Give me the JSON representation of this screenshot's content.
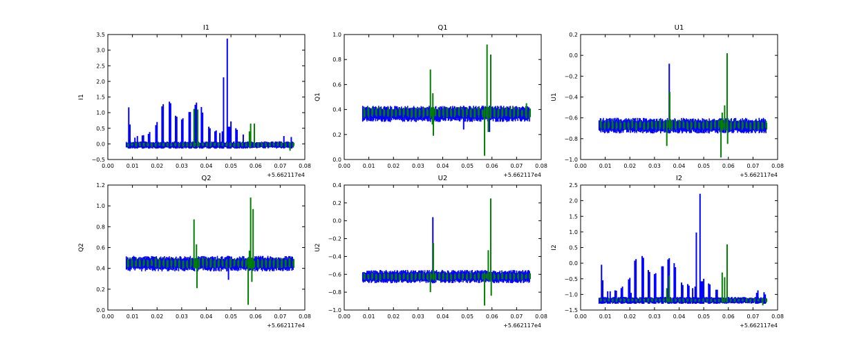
{
  "chart_data": {
    "type": "line",
    "figure_layout": "2x3 grid",
    "x_offset_label": "+5.662117e4",
    "x_range": [
      0.0075,
      0.0755
    ],
    "xlim": [
      0.0,
      0.08
    ],
    "xticks": [
      "0.00",
      "0.01",
      "0.02",
      "0.03",
      "0.04",
      "0.05",
      "0.06",
      "0.07",
      "0.08"
    ],
    "series_colors": {
      "blue": "#0000ff",
      "green": "#007f00"
    },
    "panels": [
      {
        "title": "I1",
        "ylabel": "I1",
        "ylim": [
          -0.5,
          3.5
        ],
        "ystep": 0.5,
        "yticks": [
          "−0.5",
          "0.0",
          "0.5",
          "1.0",
          "1.5",
          "2.0",
          "2.5",
          "3.0",
          "3.5"
        ],
        "blue_band": [
          -0.15,
          0.08
        ],
        "green_band": [
          -0.1,
          0.05
        ],
        "blue_spikes": [
          [
            0.0085,
            1.17
          ],
          [
            0.009,
            0.62
          ],
          [
            0.011,
            0.2
          ],
          [
            0.012,
            0.25
          ],
          [
            0.014,
            0.27
          ],
          [
            0.0145,
            0.28
          ],
          [
            0.0165,
            0.32
          ],
          [
            0.017,
            0.38
          ],
          [
            0.0195,
            0.6
          ],
          [
            0.02,
            0.7
          ],
          [
            0.022,
            1.2
          ],
          [
            0.0225,
            1.27
          ],
          [
            0.025,
            1.35
          ],
          [
            0.0255,
            1.3
          ],
          [
            0.0275,
            0.9
          ],
          [
            0.028,
            0.87
          ],
          [
            0.03,
            0.78
          ],
          [
            0.0305,
            0.82
          ],
          [
            0.033,
            1.02
          ],
          [
            0.0335,
            1.02
          ],
          [
            0.0355,
            1.25
          ],
          [
            0.036,
            1.32
          ],
          [
            0.038,
            1.18
          ],
          [
            0.0385,
            1.0
          ],
          [
            0.041,
            0.55
          ],
          [
            0.0415,
            0.5
          ],
          [
            0.0435,
            0.4
          ],
          [
            0.044,
            0.43
          ],
          [
            0.0455,
            0.35
          ],
          [
            0.0465,
            0.4
          ],
          [
            0.047,
            2.13
          ],
          [
            0.0485,
            3.37
          ],
          [
            0.049,
            0.55
          ],
          [
            0.0495,
            0.55
          ],
          [
            0.05,
            0.72
          ],
          [
            0.052,
            0.5
          ],
          [
            0.0525,
            0.45
          ],
          [
            0.055,
            0.3
          ],
          [
            0.0715,
            0.25
          ],
          [
            0.0745,
            0.22
          ]
        ],
        "green_spikes": [
          [
            0.035,
            1.12
          ],
          [
            0.0365,
            1.1
          ],
          [
            0.0575,
            0.4
          ],
          [
            0.058,
            0.65
          ],
          [
            0.0595,
            0.65
          ],
          [
            0.074,
            -0.22
          ]
        ]
      },
      {
        "title": "Q1",
        "ylabel": "Q1",
        "ylim": [
          0.0,
          1.0
        ],
        "ystep": 0.2,
        "yticks": [
          "0.0",
          "0.2",
          "0.4",
          "0.6",
          "0.8",
          "1.0"
        ],
        "blue_band": [
          0.3,
          0.43
        ],
        "green_band": [
          0.33,
          0.42
        ],
        "blue_spikes": [
          [
            0.0485,
            0.24
          ],
          [
            0.059,
            0.22
          ]
        ],
        "green_spikes": [
          [
            0.035,
            0.72
          ],
          [
            0.0358,
            0.28
          ],
          [
            0.036,
            0.53
          ],
          [
            0.0362,
            0.19
          ],
          [
            0.057,
            0.03
          ],
          [
            0.058,
            0.92
          ],
          [
            0.0585,
            0.22
          ],
          [
            0.0595,
            0.84
          ],
          [
            0.074,
            0.45
          ]
        ]
      },
      {
        "title": "U1",
        "ylabel": "U1",
        "ylim": [
          -1.0,
          0.2
        ],
        "ystep": 0.2,
        "yticks": [
          "−1.0",
          "−0.8",
          "−0.6",
          "−0.4",
          "−0.2",
          "0.0",
          "0.2"
        ],
        "blue_band": [
          -0.75,
          -0.6
        ],
        "green_band": [
          -0.72,
          -0.62
        ],
        "blue_spikes": [
          [
            0.036,
            -0.08
          ]
        ],
        "green_spikes": [
          [
            0.035,
            -0.87
          ],
          [
            0.0362,
            -0.35
          ],
          [
            0.057,
            -0.98
          ],
          [
            0.0575,
            -0.55
          ],
          [
            0.0585,
            -0.48
          ],
          [
            0.0595,
            0.02
          ],
          [
            0.0597,
            -0.85
          ]
        ]
      },
      {
        "title": "Q2",
        "ylabel": "Q2",
        "ylim": [
          0.0,
          1.2
        ],
        "ystep": 0.2,
        "yticks": [
          "0.0",
          "0.2",
          "0.4",
          "0.6",
          "0.8",
          "1.0",
          "1.2"
        ],
        "blue_band": [
          0.37,
          0.52
        ],
        "green_band": [
          0.4,
          0.5
        ],
        "blue_spikes": [
          [
            0.049,
            0.29
          ]
        ],
        "green_spikes": [
          [
            0.035,
            0.87
          ],
          [
            0.036,
            0.63
          ],
          [
            0.0362,
            0.21
          ],
          [
            0.057,
            0.05
          ],
          [
            0.0575,
            0.57
          ],
          [
            0.058,
            1.08
          ],
          [
            0.0585,
            0.27
          ],
          [
            0.059,
            0.97
          ],
          [
            0.074,
            0.5
          ]
        ]
      },
      {
        "title": "U2",
        "ylabel": "U2",
        "ylim": [
          -1.0,
          0.4
        ],
        "ystep": 0.2,
        "yticks": [
          "−1.0",
          "−0.8",
          "−0.6",
          "−0.4",
          "−0.2",
          "0.0",
          "0.2",
          "0.4"
        ],
        "blue_band": [
          -0.7,
          -0.55
        ],
        "green_band": [
          -0.67,
          -0.58
        ],
        "blue_spikes": [
          [
            0.036,
            0.04
          ]
        ],
        "green_spikes": [
          [
            0.035,
            -0.8
          ],
          [
            0.0362,
            -0.25
          ],
          [
            0.057,
            -0.95
          ],
          [
            0.0585,
            -0.33
          ],
          [
            0.0595,
            0.25
          ],
          [
            0.0597,
            -0.84
          ]
        ]
      },
      {
        "title": "I2",
        "ylabel": "I2",
        "ylim": [
          -1.5,
          2.5
        ],
        "ystep": 0.5,
        "yticks": [
          "−1.5",
          "−1.0",
          "−0.5",
          "0.0",
          "0.5",
          "1.0",
          "1.5",
          "2.0",
          "2.5"
        ],
        "blue_band": [
          -1.3,
          -1.08
        ],
        "green_band": [
          -1.25,
          -1.12
        ],
        "blue_spikes": [
          [
            0.0085,
            -0.05
          ],
          [
            0.009,
            -0.55
          ],
          [
            0.011,
            -0.9
          ],
          [
            0.012,
            -0.9
          ],
          [
            0.014,
            -0.87
          ],
          [
            0.0145,
            -0.88
          ],
          [
            0.0165,
            -0.8
          ],
          [
            0.017,
            -0.75
          ],
          [
            0.0195,
            -0.52
          ],
          [
            0.02,
            -0.47
          ],
          [
            0.0205,
            -0.95
          ],
          [
            0.022,
            0.08
          ],
          [
            0.0225,
            0.13
          ],
          [
            0.025,
            0.23
          ],
          [
            0.0255,
            0.17
          ],
          [
            0.0275,
            -0.22
          ],
          [
            0.028,
            -0.28
          ],
          [
            0.03,
            -0.35
          ],
          [
            0.0305,
            -0.32
          ],
          [
            0.033,
            -0.1
          ],
          [
            0.0335,
            -0.1
          ],
          [
            0.0355,
            0.12
          ],
          [
            0.036,
            0.16
          ],
          [
            0.038,
            0.0
          ],
          [
            0.0385,
            -0.13
          ],
          [
            0.041,
            -0.62
          ],
          [
            0.0415,
            -0.7
          ],
          [
            0.0435,
            -0.67
          ],
          [
            0.044,
            -0.72
          ],
          [
            0.0455,
            -0.8
          ],
          [
            0.0465,
            -0.75
          ],
          [
            0.047,
            0.98
          ],
          [
            0.0485,
            2.22
          ],
          [
            0.049,
            -0.58
          ],
          [
            0.0495,
            -0.58
          ],
          [
            0.05,
            -0.5
          ],
          [
            0.052,
            -0.65
          ],
          [
            0.0525,
            -0.68
          ],
          [
            0.055,
            -0.85
          ],
          [
            0.0555,
            -0.85
          ],
          [
            0.0715,
            -0.95
          ],
          [
            0.072,
            -0.87
          ],
          [
            0.0745,
            -0.93
          ],
          [
            0.075,
            -1.0
          ]
        ],
        "green_spikes": [
          [
            0.035,
            -0.8
          ],
          [
            0.036,
            -0.4
          ],
          [
            0.0575,
            -0.3
          ],
          [
            0.0585,
            -0.45
          ],
          [
            0.0595,
            0.6
          ],
          [
            0.074,
            -1.35
          ]
        ]
      }
    ]
  }
}
